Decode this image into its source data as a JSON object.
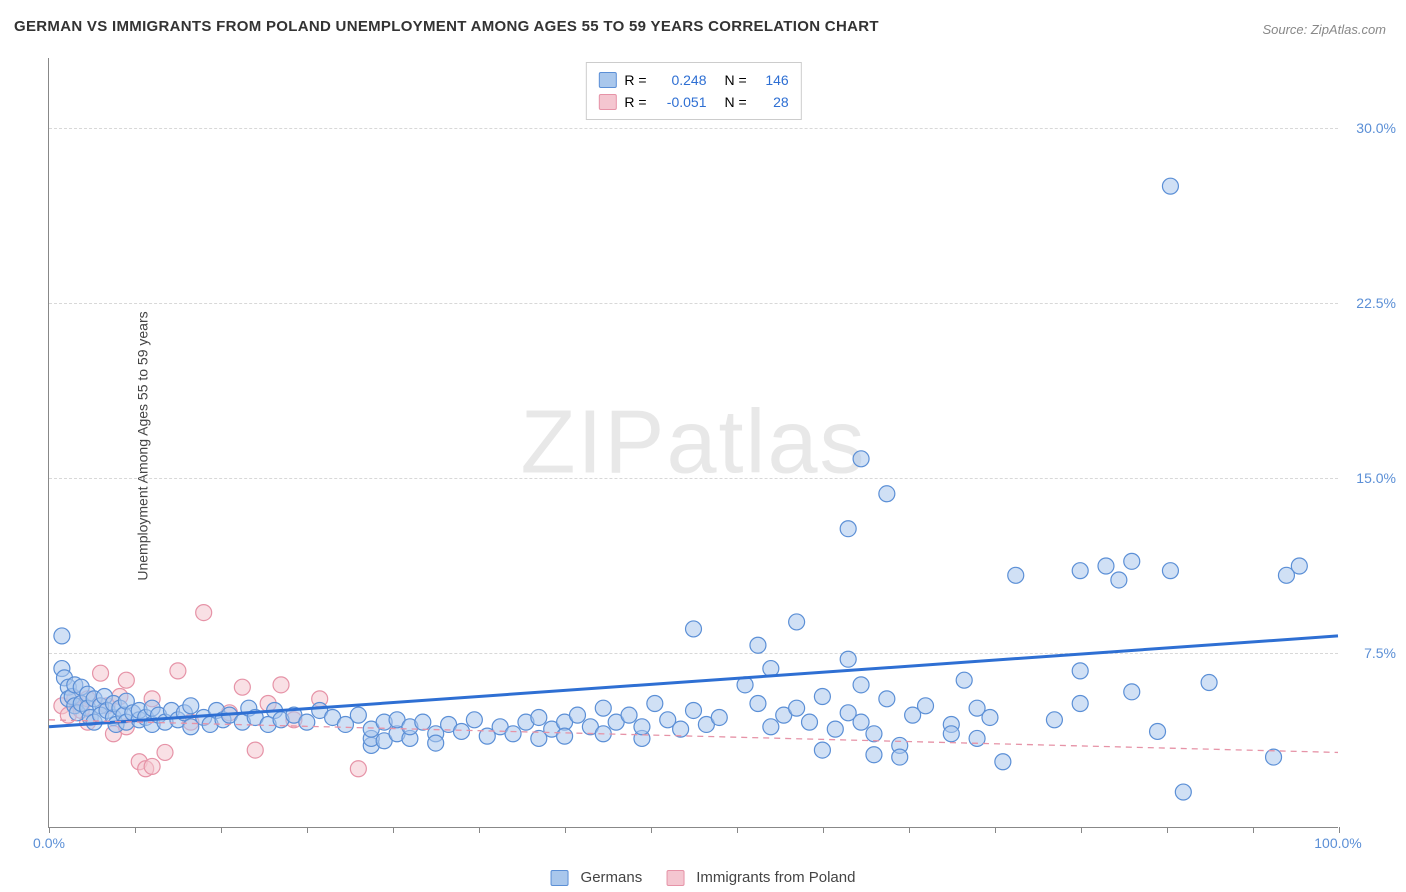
{
  "title": "GERMAN VS IMMIGRANTS FROM POLAND UNEMPLOYMENT AMONG AGES 55 TO 59 YEARS CORRELATION CHART",
  "source": "Source: ZipAtlas.com",
  "watermark": "ZIPatlas",
  "ylabel": "Unemployment Among Ages 55 to 59 years",
  "chart": {
    "type": "scatter",
    "background_color": "#ffffff",
    "grid_color": "#d8d8d8",
    "axis_color": "#888888",
    "xlim": [
      0,
      100
    ],
    "ylim": [
      0,
      33
    ],
    "yticks": [
      7.5,
      15.0,
      22.5,
      30.0
    ],
    "ytick_labels": [
      "7.5%",
      "15.0%",
      "22.5%",
      "30.0%"
    ],
    "ytick_color": "#5b8fd6",
    "xticks": [
      0,
      100
    ],
    "xtick_positions": [
      0,
      6.67,
      13.33,
      20,
      26.67,
      33.33,
      40,
      46.67,
      53.33,
      60,
      66.67,
      73.33,
      80,
      86.67,
      93.33,
      100
    ],
    "xtick_labels": [
      "0.0%",
      "100.0%"
    ],
    "xtick_color": "#5b8fd6",
    "marker_radius": 8,
    "marker_stroke_width": 1.2,
    "series": [
      {
        "name": "Germans",
        "label": "Germans",
        "fill_color": "#a9c7ec",
        "stroke_color": "#5b8fd6",
        "fill_opacity": 0.55,
        "R": 0.248,
        "N": 146,
        "stat_color": "#2e6fd3",
        "trendline": {
          "color": "#2e6fd3",
          "width": 3,
          "dash": "none",
          "y_at_x0": 4.3,
          "y_at_x100": 8.2
        },
        "points": [
          [
            1,
            8.2
          ],
          [
            1,
            6.8
          ],
          [
            1.2,
            6.4
          ],
          [
            1.5,
            6.0
          ],
          [
            1.5,
            5.5
          ],
          [
            1.8,
            5.6
          ],
          [
            2,
            5.2
          ],
          [
            2,
            6.1
          ],
          [
            2.2,
            4.9
          ],
          [
            2.5,
            5.3
          ],
          [
            2.5,
            6.0
          ],
          [
            3,
            5.7
          ],
          [
            3,
            5.1
          ],
          [
            3.2,
            4.7
          ],
          [
            3.5,
            5.5
          ],
          [
            3.5,
            4.5
          ],
          [
            4,
            5.2
          ],
          [
            4,
            4.8
          ],
          [
            4.3,
            5.6
          ],
          [
            4.5,
            5.0
          ],
          [
            5,
            4.7
          ],
          [
            5,
            5.3
          ],
          [
            5.2,
            4.4
          ],
          [
            5.5,
            5.1
          ],
          [
            5.8,
            4.8
          ],
          [
            6,
            4.5
          ],
          [
            6,
            5.4
          ],
          [
            6.5,
            4.9
          ],
          [
            7,
            4.6
          ],
          [
            7,
            5.0
          ],
          [
            7.5,
            4.7
          ],
          [
            8,
            4.4
          ],
          [
            8,
            5.1
          ],
          [
            8.5,
            4.8
          ],
          [
            9,
            4.5
          ],
          [
            9.5,
            5.0
          ],
          [
            10,
            4.6
          ],
          [
            10.5,
            4.9
          ],
          [
            11,
            4.3
          ],
          [
            11,
            5.2
          ],
          [
            12,
            4.7
          ],
          [
            12.5,
            4.4
          ],
          [
            13,
            5.0
          ],
          [
            13.5,
            4.6
          ],
          [
            14,
            4.8
          ],
          [
            15,
            4.5
          ],
          [
            15.5,
            5.1
          ],
          [
            16,
            4.7
          ],
          [
            17,
            4.4
          ],
          [
            17.5,
            5.0
          ],
          [
            18,
            4.6
          ],
          [
            19,
            4.8
          ],
          [
            20,
            4.5
          ],
          [
            21,
            5.0
          ],
          [
            22,
            4.7
          ],
          [
            23,
            4.4
          ],
          [
            24,
            4.8
          ],
          [
            25,
            3.5
          ],
          [
            25,
            3.8
          ],
          [
            25,
            4.2
          ],
          [
            26,
            4.5
          ],
          [
            26,
            3.7
          ],
          [
            27,
            4.0
          ],
          [
            27,
            4.6
          ],
          [
            28,
            3.8
          ],
          [
            28,
            4.3
          ],
          [
            29,
            4.5
          ],
          [
            30,
            4.0
          ],
          [
            30,
            3.6
          ],
          [
            31,
            4.4
          ],
          [
            32,
            4.1
          ],
          [
            33,
            4.6
          ],
          [
            34,
            3.9
          ],
          [
            35,
            4.3
          ],
          [
            36,
            4.0
          ],
          [
            37,
            4.5
          ],
          [
            38,
            4.7
          ],
          [
            38,
            3.8
          ],
          [
            39,
            4.2
          ],
          [
            40,
            4.5
          ],
          [
            40,
            3.9
          ],
          [
            41,
            4.8
          ],
          [
            42,
            4.3
          ],
          [
            43,
            4.0
          ],
          [
            43,
            5.1
          ],
          [
            44,
            4.5
          ],
          [
            45,
            4.8
          ],
          [
            46,
            3.8
          ],
          [
            46,
            4.3
          ],
          [
            47,
            5.3
          ],
          [
            48,
            4.6
          ],
          [
            49,
            4.2
          ],
          [
            50,
            8.5
          ],
          [
            50,
            5.0
          ],
          [
            51,
            4.4
          ],
          [
            52,
            4.7
          ],
          [
            54,
            6.1
          ],
          [
            55,
            5.3
          ],
          [
            55,
            7.8
          ],
          [
            56,
            4.3
          ],
          [
            56,
            6.8
          ],
          [
            57,
            4.8
          ],
          [
            58,
            5.1
          ],
          [
            58,
            8.8
          ],
          [
            59,
            4.5
          ],
          [
            60,
            5.6
          ],
          [
            60,
            3.3
          ],
          [
            61,
            4.2
          ],
          [
            62,
            12.8
          ],
          [
            62,
            4.9
          ],
          [
            62,
            7.2
          ],
          [
            63,
            4.5
          ],
          [
            63,
            6.1
          ],
          [
            63,
            15.8
          ],
          [
            64,
            4.0
          ],
          [
            65,
            5.5
          ],
          [
            65,
            14.3
          ],
          [
            66,
            3.5
          ],
          [
            67,
            4.8
          ],
          [
            68,
            5.2
          ],
          [
            70,
            4.4
          ],
          [
            71,
            6.3
          ],
          [
            72,
            3.8
          ],
          [
            72,
            5.1
          ],
          [
            74,
            2.8
          ],
          [
            75,
            10.8
          ],
          [
            78,
            4.6
          ],
          [
            80,
            5.3
          ],
          [
            80,
            6.7
          ],
          [
            80,
            11.0
          ],
          [
            82,
            11.2
          ],
          [
            83,
            10.6
          ],
          [
            84,
            5.8
          ],
          [
            84,
            11.4
          ],
          [
            86,
            4.1
          ],
          [
            87,
            27.5
          ],
          [
            87,
            11.0
          ],
          [
            88,
            1.5
          ],
          [
            90,
            6.2
          ],
          [
            95,
            3.0
          ],
          [
            96,
            10.8
          ],
          [
            97,
            11.2
          ],
          [
            70,
            4.0
          ],
          [
            73,
            4.7
          ],
          [
            64,
            3.1
          ],
          [
            66,
            3.0
          ]
        ]
      },
      {
        "name": "Immigrants from Poland",
        "label": "Immigrants from Poland",
        "fill_color": "#f4c6d0",
        "stroke_color": "#e693a7",
        "fill_opacity": 0.55,
        "R": -0.051,
        "N": 28,
        "stat_color": "#e693a7",
        "trendline": {
          "color": "#e693a7",
          "width": 1.3,
          "dash": "6,5",
          "y_at_x0": 4.6,
          "y_at_x100": 3.2
        },
        "points": [
          [
            1,
            5.2
          ],
          [
            1.5,
            4.8
          ],
          [
            2,
            5.5
          ],
          [
            2.5,
            5.0
          ],
          [
            3,
            5.5
          ],
          [
            3,
            4.5
          ],
          [
            4,
            6.6
          ],
          [
            4.5,
            5.2
          ],
          [
            5,
            4.0
          ],
          [
            5.5,
            5.6
          ],
          [
            6,
            6.3
          ],
          [
            6,
            4.3
          ],
          [
            7,
            2.8
          ],
          [
            7.5,
            2.5
          ],
          [
            8,
            2.6
          ],
          [
            8,
            5.5
          ],
          [
            9,
            3.2
          ],
          [
            10,
            6.7
          ],
          [
            11,
            4.5
          ],
          [
            12,
            9.2
          ],
          [
            14,
            4.9
          ],
          [
            15,
            6.0
          ],
          [
            16,
            3.3
          ],
          [
            17,
            5.3
          ],
          [
            18,
            6.1
          ],
          [
            19,
            4.6
          ],
          [
            21,
            5.5
          ],
          [
            24,
            2.5
          ]
        ]
      }
    ],
    "legend_bottom": [
      {
        "label": "Germans",
        "fill_color": "#a9c7ec",
        "stroke_color": "#5b8fd6"
      },
      {
        "label": "Immigrants from Poland",
        "fill_color": "#f4c6d0",
        "stroke_color": "#e693a7"
      }
    ]
  }
}
